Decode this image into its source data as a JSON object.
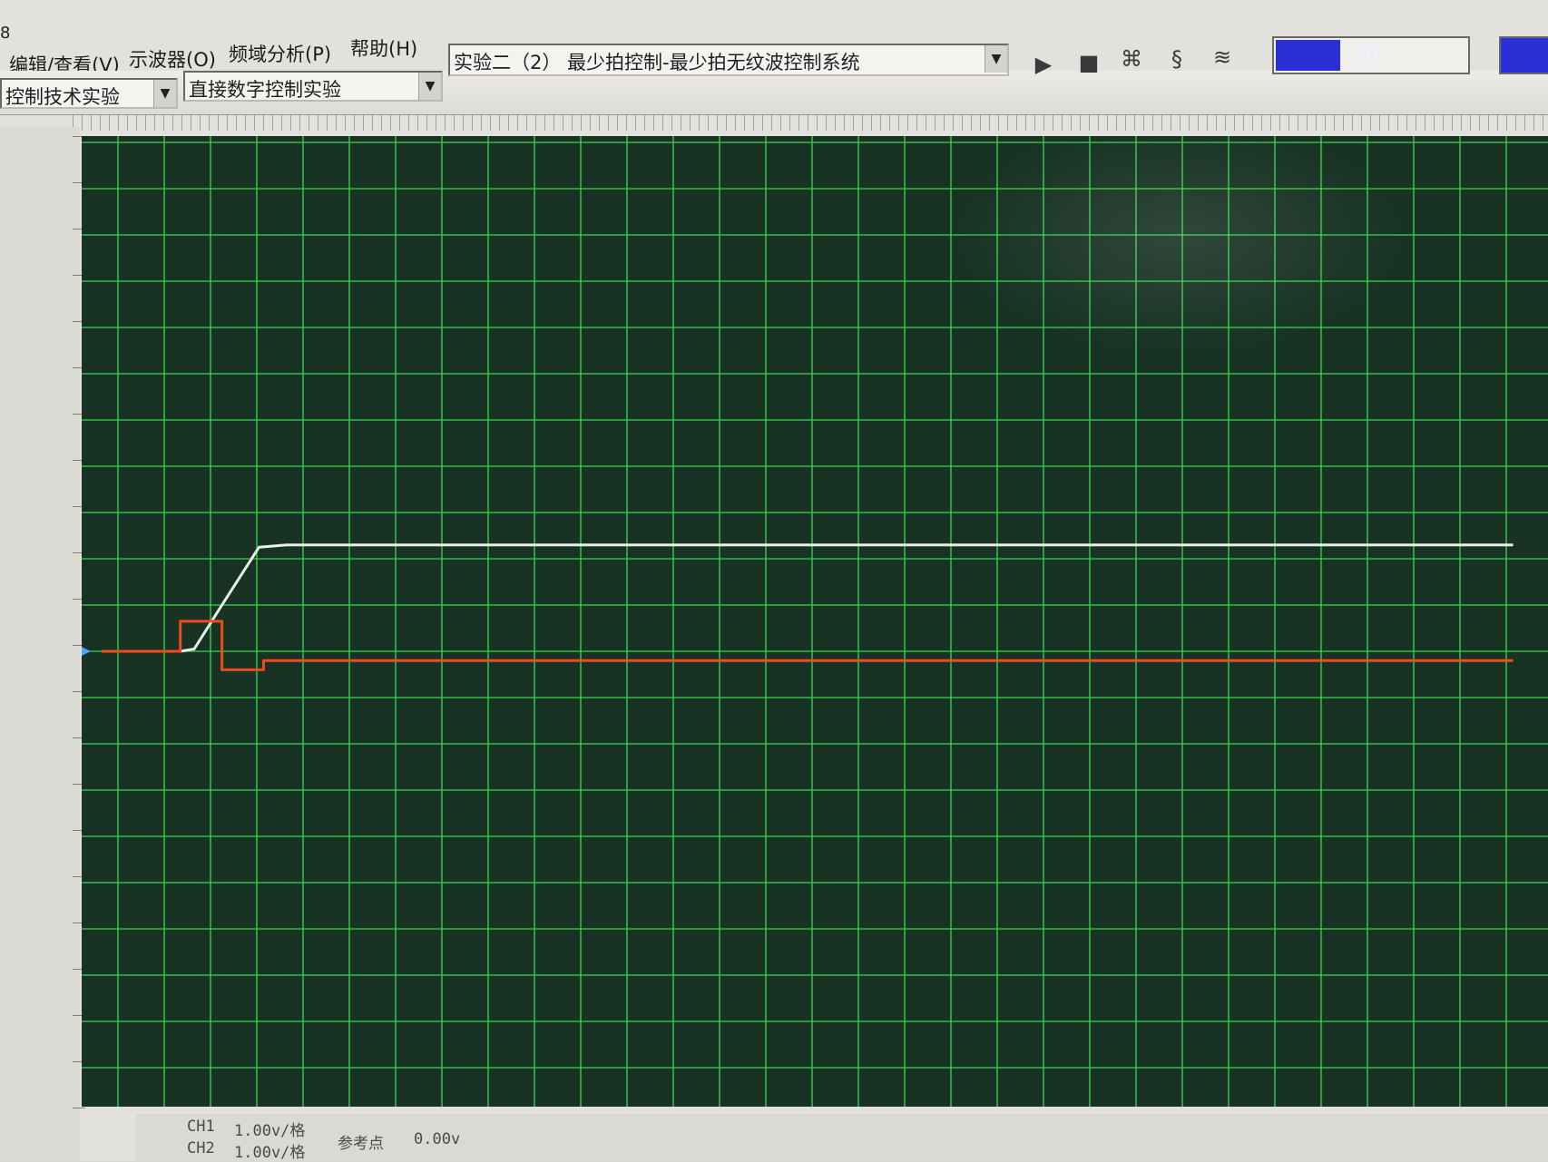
{
  "window": {
    "number": "8"
  },
  "menu": [
    {
      "label": "编辑/查看(V)"
    },
    {
      "label": "示波器(O)"
    },
    {
      "label": "频域分析(P)"
    },
    {
      "label": "帮助(H)"
    }
  ],
  "toolbar": {
    "course_select": "控制技术实验",
    "category_select": "直接数字控制实验",
    "experiment_select": "实验二（2） 最少拍控制-最少拍无纹波控制系统",
    "sample_rate_value": "50",
    "sample_rate_fill": 0.33
  },
  "scope": {
    "background": "#183323",
    "grid_color": "#3cd24a",
    "ch1_color": "#e8f0ec",
    "ch2_color": "#f04a1e"
  },
  "status": {
    "ch1_label": "CH1",
    "ch1_scale": "1.00v/格",
    "ch2_label": "CH2",
    "ch2_scale": "1.00v/格",
    "ref_label": "参考点",
    "ref_value": "0.00v"
  },
  "chart_data": {
    "type": "line",
    "grid": true,
    "ylim_div": [
      -10,
      12
    ],
    "xlim_div": [
      0,
      30
    ],
    "series": [
      {
        "name": "CH1",
        "x": [
          0,
          1.7,
          2.0,
          2.6,
          3.4,
          4.0,
          30.5
        ],
        "y": [
          0,
          0,
          0.05,
          1.0,
          2.25,
          2.3,
          2.3
        ]
      },
      {
        "name": "CH2",
        "x": [
          0,
          1.7,
          1.7,
          2.6,
          2.6,
          3.5,
          3.5,
          30.5
        ],
        "y": [
          0,
          0,
          0.65,
          0.65,
          -0.4,
          -0.4,
          -0.2,
          -0.2
        ]
      }
    ]
  }
}
